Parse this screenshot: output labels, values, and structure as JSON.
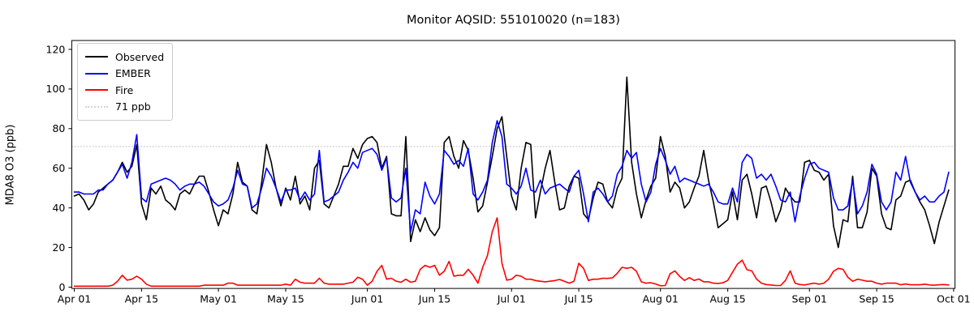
{
  "title": "Monitor AQSID: 551010020 (n=183)",
  "ylabel": "MDA8 O3 (ppb)",
  "legend": [
    {
      "label": "Observed",
      "color": "#000000",
      "dash": "solid"
    },
    {
      "label": "EMBER",
      "color": "#0000ff",
      "dash": "solid"
    },
    {
      "label": "Fire",
      "color": "#ff0000",
      "dash": "solid"
    },
    {
      "label": "71 ppb",
      "color": "#d3d3d3",
      "dash": "dotted"
    }
  ],
  "chart_data": {
    "type": "line",
    "title": "Monitor AQSID: 551010020 (n=183)",
    "xlabel": "",
    "ylabel": "MDA8 O3 (ppb)",
    "n_points": 183,
    "x_start": "Apr 01",
    "x_end": "Sep 30",
    "ylim": [
      0,
      124.5
    ],
    "y_ticks": [
      0,
      20,
      40,
      60,
      80,
      100,
      120
    ],
    "x_tick_labels": [
      "Apr 01",
      "Apr 15",
      "May 01",
      "May 15",
      "Jun 01",
      "Jun 15",
      "Jul 01",
      "Jul 15",
      "Aug 01",
      "Aug 15",
      "Sep 01",
      "Sep 15",
      "Oct 01"
    ],
    "x_tick_days": [
      0,
      14,
      30,
      44,
      61,
      75,
      91,
      105,
      122,
      136,
      153,
      167,
      183
    ],
    "grid": false,
    "legend_position": "upper left",
    "threshold": {
      "label": "71 ppb",
      "value": 71,
      "color": "#d3d3d3",
      "style": "dotted"
    },
    "series": [
      {
        "name": "Observed",
        "color": "#000000",
        "values": [
          46,
          47,
          44,
          39,
          42,
          48,
          50,
          52,
          54,
          58,
          63,
          58,
          61,
          72,
          42,
          34,
          50,
          47,
          51,
          44,
          42,
          39,
          47,
          49,
          47,
          52,
          56,
          56,
          48,
          39,
          31,
          39,
          37,
          47,
          63,
          53,
          51,
          39,
          37,
          53,
          72,
          63,
          50,
          41,
          50,
          44,
          56,
          42,
          46,
          39,
          60,
          64,
          42,
          40,
          46,
          52,
          61,
          61,
          70,
          65,
          72,
          75,
          76,
          73,
          60,
          66,
          37,
          36,
          36,
          76,
          23,
          34,
          28,
          35,
          29,
          26,
          30,
          73,
          76,
          66,
          60,
          74,
          69,
          55,
          38,
          41,
          53,
          66,
          80,
          86,
          66,
          46,
          39,
          60,
          73,
          72,
          35,
          48,
          60,
          69,
          53,
          39,
          40,
          51,
          56,
          55,
          37,
          34,
          45,
          53,
          52,
          43,
          40,
          50,
          55,
          106,
          63,
          47,
          35,
          44,
          51,
          55,
          76,
          66,
          48,
          53,
          50,
          40,
          43,
          50,
          56,
          69,
          54,
          43,
          30,
          32,
          34,
          48,
          34,
          54,
          57,
          47,
          35,
          50,
          51,
          43,
          33,
          39,
          50,
          46,
          43,
          43,
          63,
          64,
          59,
          58,
          54,
          57,
          31,
          20,
          34,
          33,
          56,
          30,
          30,
          38,
          60,
          56,
          37,
          30,
          29,
          44,
          46,
          53,
          54,
          48,
          43,
          39,
          31,
          22,
          33,
          41,
          49
        ]
      },
      {
        "name": "EMBER",
        "color": "#0000ff",
        "values": [
          48,
          48,
          47,
          47,
          47,
          49,
          49,
          52,
          54,
          58,
          62,
          55,
          63,
          77,
          45,
          43,
          52,
          53,
          54,
          55,
          54,
          52,
          49,
          51,
          52,
          52,
          53,
          51,
          47,
          43,
          41,
          42,
          44,
          50,
          59,
          52,
          51,
          40,
          42,
          50,
          60,
          56,
          50,
          43,
          49,
          49,
          50,
          44,
          48,
          44,
          47,
          69,
          43,
          44,
          46,
          48,
          54,
          58,
          63,
          60,
          68,
          69,
          70,
          67,
          59,
          65,
          45,
          43,
          45,
          60,
          28,
          39,
          37,
          53,
          46,
          42,
          47,
          69,
          66,
          62,
          64,
          61,
          70,
          47,
          44,
          48,
          54,
          73,
          84,
          76,
          52,
          50,
          47,
          51,
          60,
          49,
          48,
          54,
          47,
          50,
          51,
          52,
          50,
          48,
          56,
          59,
          47,
          33,
          48,
          50,
          47,
          43,
          46,
          57,
          61,
          69,
          65,
          68,
          52,
          43,
          48,
          62,
          70,
          64,
          57,
          61,
          53,
          55,
          54,
          53,
          52,
          51,
          52,
          48,
          43,
          42,
          42,
          50,
          43,
          63,
          67,
          65,
          55,
          57,
          54,
          57,
          51,
          44,
          43,
          48,
          33,
          46,
          55,
          62,
          63,
          60,
          59,
          58,
          45,
          39,
          39,
          41,
          54,
          37,
          41,
          48,
          62,
          57,
          43,
          39,
          43,
          58,
          54,
          66,
          53,
          48,
          44,
          46,
          43,
          43,
          46,
          48,
          58
        ]
      },
      {
        "name": "Fire",
        "color": "#ff0000",
        "values": [
          0.5,
          0.5,
          0.5,
          0.5,
          0.5,
          0.5,
          0.5,
          0.5,
          1,
          3,
          6,
          3.5,
          4,
          5.5,
          4,
          1.5,
          0.5,
          0.5,
          0.5,
          0.5,
          0.5,
          0.5,
          0.5,
          0.5,
          0.5,
          0.5,
          0.5,
          1,
          1,
          1,
          1,
          1,
          2,
          2,
          1,
          1,
          1,
          1,
          1,
          1,
          1,
          1,
          1,
          1,
          1.5,
          1,
          4,
          2.5,
          2,
          2,
          2,
          4.5,
          2,
          1.5,
          1.5,
          1.5,
          1.5,
          2,
          2.5,
          5,
          4,
          1,
          3,
          8,
          11,
          4,
          4.5,
          3,
          2.5,
          4,
          2.5,
          3,
          9,
          11,
          10,
          11,
          6,
          8,
          13,
          5.5,
          6,
          6,
          9,
          6,
          2,
          10,
          16,
          28,
          35,
          12,
          3.5,
          4,
          6,
          5.5,
          4,
          4,
          3.3,
          3,
          2.7,
          3,
          3.3,
          3.9,
          3,
          2,
          3,
          12,
          9.5,
          3.4,
          4,
          4,
          4.5,
          4.4,
          4.7,
          7,
          10,
          9.5,
          10,
          8,
          2.7,
          2,
          2.2,
          1.6,
          0.7,
          0.8,
          6.8,
          8.2,
          5.4,
          3.4,
          4.8,
          3.4,
          4.1,
          2.7,
          2.7,
          2,
          1.9,
          2.2,
          3.4,
          7.5,
          11.6,
          13.6,
          8.8,
          8.2,
          4.1,
          2,
          1.3,
          1.1,
          0.8,
          0.8,
          3.4,
          8.2,
          2,
          1.3,
          1.1,
          1.6,
          2,
          1.5,
          2,
          4,
          8,
          9.5,
          9,
          5,
          3,
          4,
          3.5,
          3,
          3,
          2,
          1.5,
          2,
          2,
          2,
          1.2,
          1.6,
          1.2,
          1.2,
          1.2,
          1.5,
          1.1,
          1,
          1.2,
          1.3,
          1.1
        ]
      }
    ]
  }
}
